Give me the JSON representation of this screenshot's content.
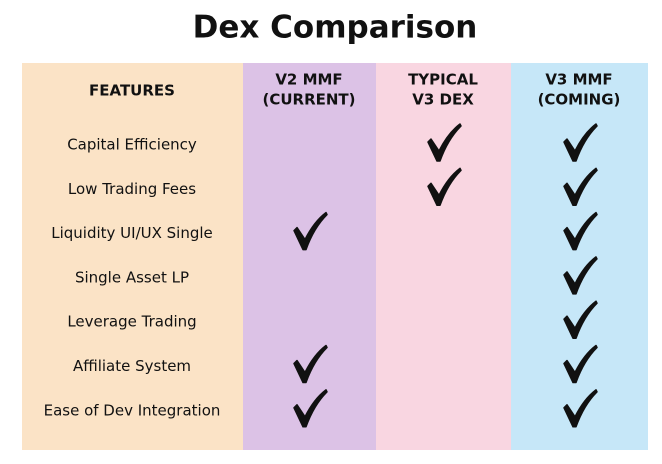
{
  "title": "Dex Comparison",
  "table": {
    "headers": [
      [
        "FEATURES"
      ],
      [
        "V2 MMF",
        "(CURRENT)"
      ],
      [
        "TYPICAL",
        "V3 DEX"
      ],
      [
        "V3 MMF",
        "(COMING)"
      ]
    ],
    "rows": [
      {
        "feature": "Capital Efficiency",
        "checks": [
          false,
          true,
          true
        ]
      },
      {
        "feature": "Low Trading Fees",
        "checks": [
          false,
          true,
          true
        ]
      },
      {
        "feature": "Liquidity UI/UX Single",
        "checks": [
          true,
          false,
          true
        ]
      },
      {
        "feature": "Single Asset LP",
        "checks": [
          false,
          false,
          true
        ]
      },
      {
        "feature": "Leverage Trading",
        "checks": [
          false,
          false,
          true
        ]
      },
      {
        "feature": "Affiliate System",
        "checks": [
          true,
          false,
          true
        ]
      },
      {
        "feature": "Ease of Dev Integration",
        "checks": [
          true,
          false,
          true
        ]
      }
    ]
  }
}
